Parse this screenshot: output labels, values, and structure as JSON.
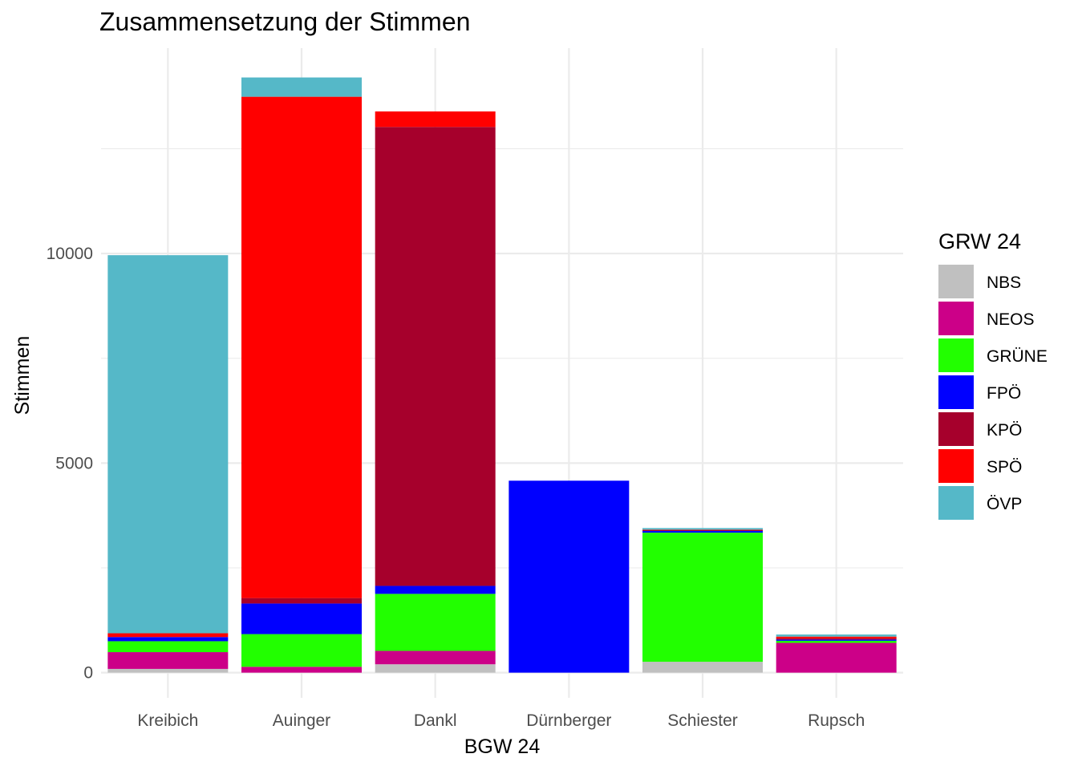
{
  "chart_data": {
    "type": "bar",
    "stacked": true,
    "title": "Zusammensetzung der Stimmen",
    "xlabel": "BGW 24",
    "ylabel": "Stimmen",
    "ylim": [
      -600,
      14900
    ],
    "yticks": [
      0,
      5000,
      10000
    ],
    "ytick_labels": [
      "0",
      "5000",
      "10000"
    ],
    "grid": true,
    "legend_title": "GRW 24",
    "legend_position": "right",
    "categories": [
      "Kreibich",
      "Auinger",
      "Dankl",
      "Dürnberger",
      "Schiester",
      "Rupsch"
    ],
    "series": [
      {
        "name": "NBS",
        "color": "#c0c0c0",
        "values": [
          90,
          0,
          200,
          0,
          260,
          0
        ]
      },
      {
        "name": "NEOS",
        "color": "#cc0088",
        "values": [
          400,
          140,
          320,
          0,
          0,
          710
        ]
      },
      {
        "name": "GRÜNE",
        "color": "#22ff00",
        "values": [
          260,
          780,
          1360,
          0,
          3080,
          50
        ]
      },
      {
        "name": "FPÖ",
        "color": "#0000ff",
        "values": [
          100,
          730,
          190,
          4580,
          40,
          30
        ]
      },
      {
        "name": "KPÖ",
        "color": "#a6002c",
        "values": [
          0,
          130,
          10950,
          0,
          20,
          30
        ]
      },
      {
        "name": "SPÖ",
        "color": "#ff0000",
        "values": [
          90,
          11960,
          370,
          0,
          10,
          40
        ]
      },
      {
        "name": "ÖVP",
        "color": "#55b8c8",
        "values": [
          9020,
          460,
          0,
          0,
          40,
          50
        ]
      }
    ]
  }
}
